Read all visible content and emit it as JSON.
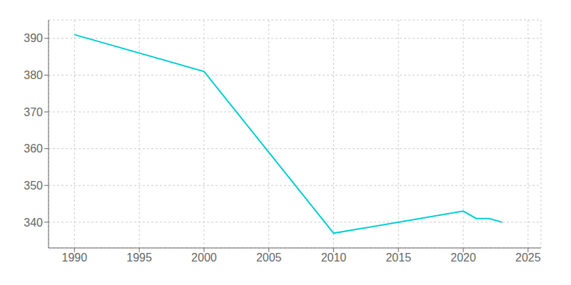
{
  "chart_data": {
    "type": "line",
    "x": [
      1990,
      2000,
      2010,
      2020,
      2021,
      2022,
      2023
    ],
    "values": [
      391,
      381,
      337,
      343,
      341,
      341,
      340
    ],
    "color": "#00CED1",
    "xlim": [
      1988,
      2026
    ],
    "xticks": [
      1990,
      1995,
      2000,
      2005,
      2010,
      2015,
      2020,
      2025
    ],
    "ylim": [
      333,
      395
    ],
    "yticks": [
      340,
      350,
      360,
      370,
      380,
      390
    ],
    "grid": true
  }
}
